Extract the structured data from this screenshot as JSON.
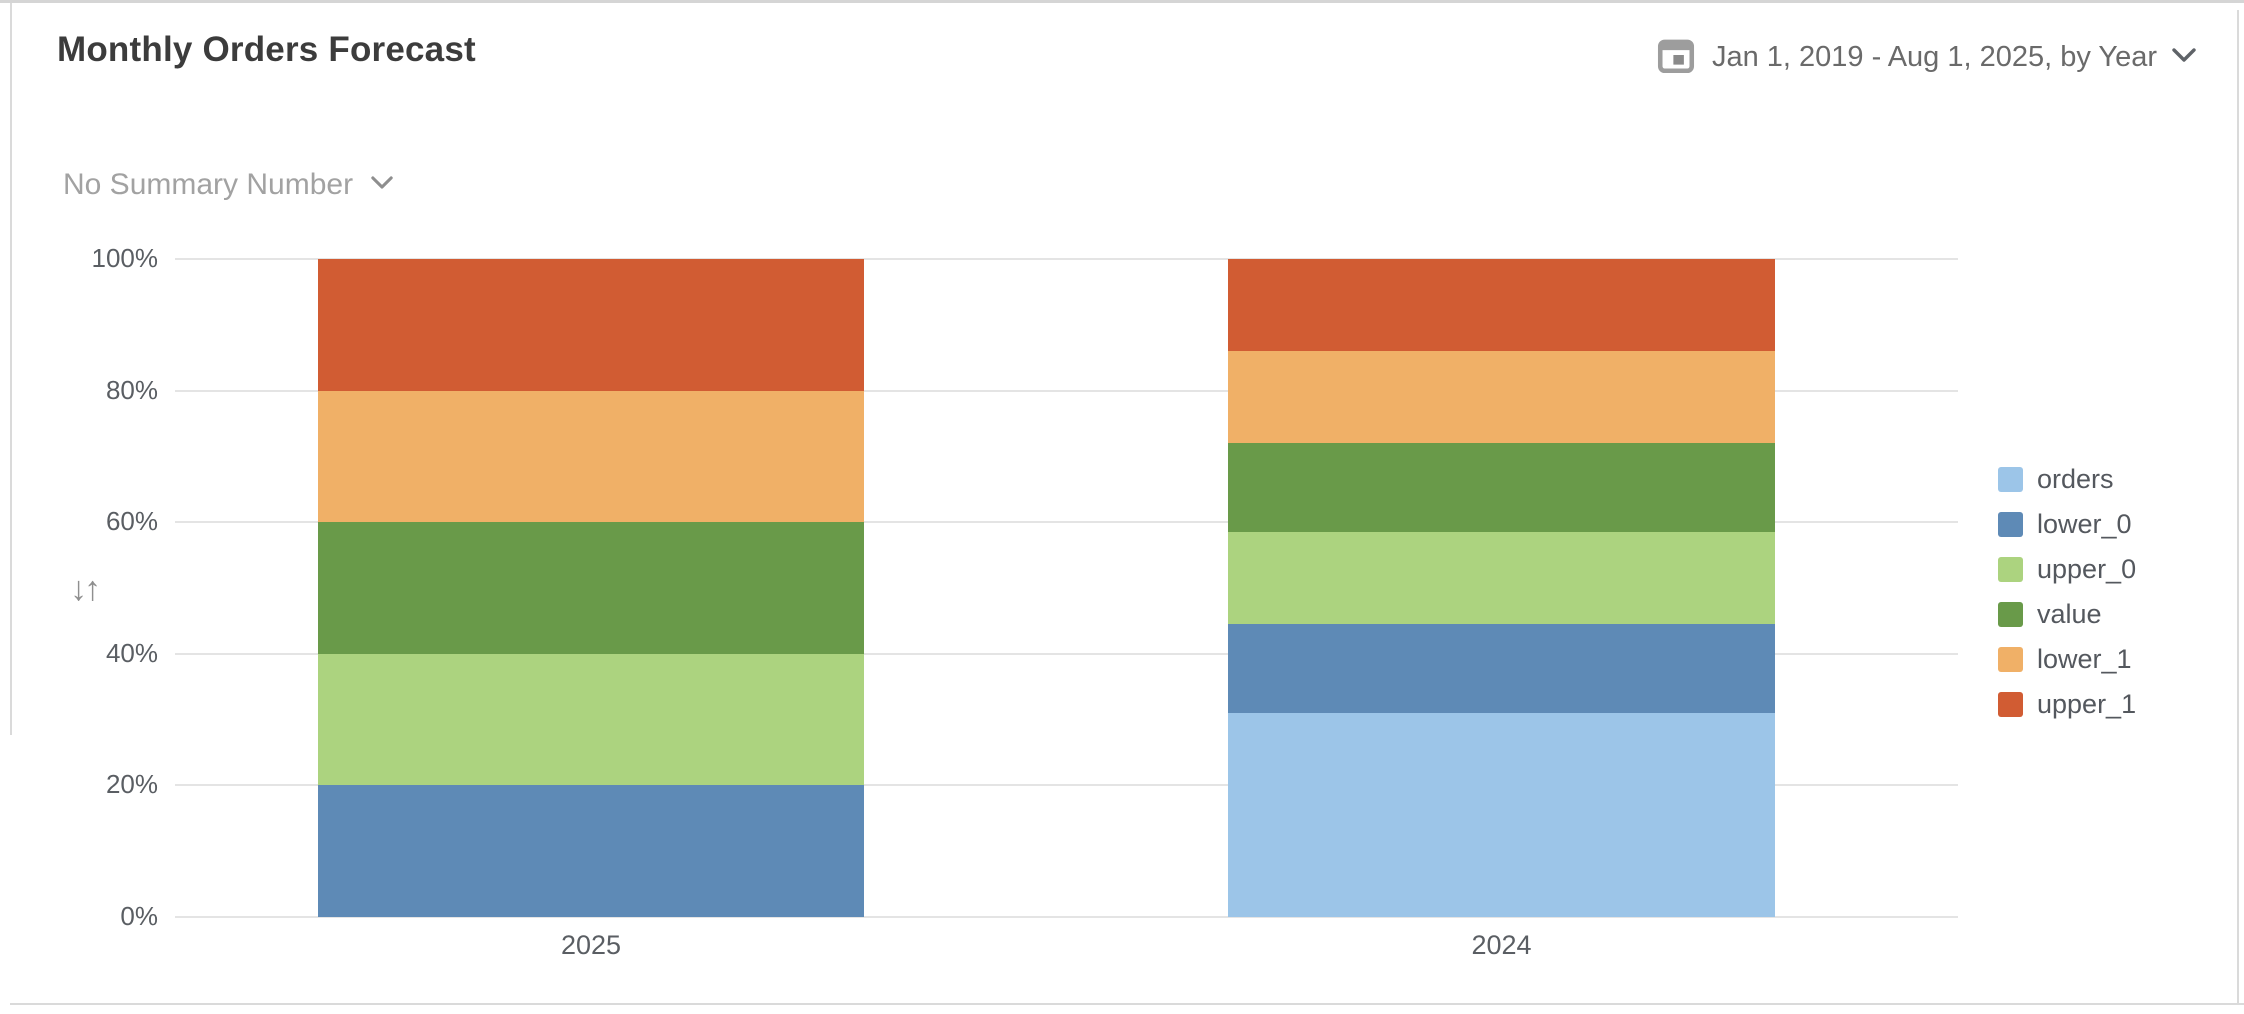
{
  "header": {
    "title": "Monthly Orders Forecast",
    "date_range": "Jan 1, 2019 - Aug 1, 2025, by Year",
    "summary_label": "No Summary Number"
  },
  "axis": {
    "sort_icon": "sort-vertical-arrows",
    "calendar_icon": "calendar"
  },
  "colors": {
    "orders": "#9CC5E8",
    "lower_0": "#5E8AB6",
    "upper_0": "#ACD37F",
    "value": "#699A49",
    "lower_1": "#F0B067",
    "upper_1": "#D15C33",
    "gridline": "#e4e4e4",
    "text_muted": "#6a6a6a"
  },
  "chart_data": {
    "type": "bar",
    "stacking": "percent",
    "title": "Monthly Orders Forecast",
    "xlabel": "",
    "ylabel": "",
    "categories": [
      "2025",
      "2024"
    ],
    "series": [
      {
        "name": "orders",
        "color": "#9CC5E8",
        "values": [
          0,
          31
        ]
      },
      {
        "name": "lower_0",
        "color": "#5E8AB6",
        "values": [
          20,
          13.5
        ]
      },
      {
        "name": "upper_0",
        "color": "#ACD37F",
        "values": [
          20,
          14
        ]
      },
      {
        "name": "value",
        "color": "#699A49",
        "values": [
          20,
          13.5
        ]
      },
      {
        "name": "lower_1",
        "color": "#F0B067",
        "values": [
          20,
          14
        ]
      },
      {
        "name": "upper_1",
        "color": "#D15C33",
        "values": [
          20,
          14
        ]
      }
    ],
    "y_ticks": [
      "0%",
      "20%",
      "40%",
      "60%",
      "80%",
      "100%"
    ],
    "ylim": [
      0,
      100
    ],
    "grid": true,
    "legend_position": "right"
  }
}
